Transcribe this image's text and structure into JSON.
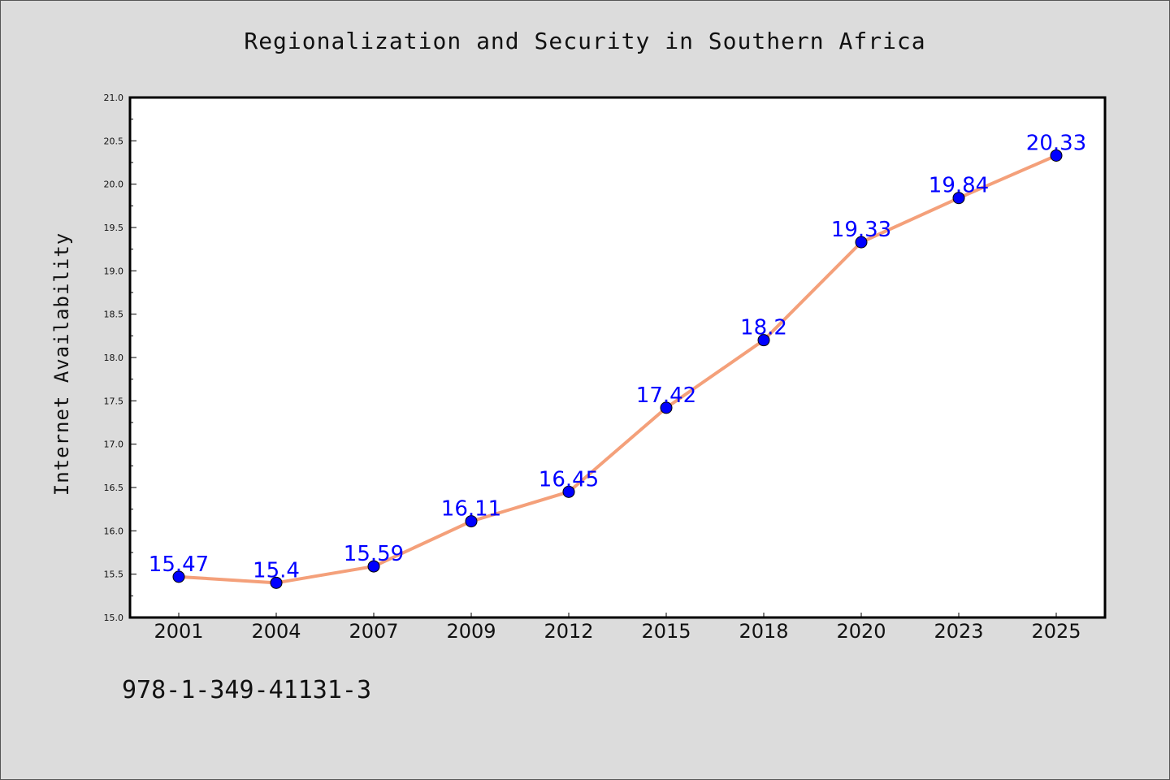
{
  "chart_data": {
    "type": "line",
    "title": "Regionalization and Security in Southern Africa",
    "xlabel": "",
    "ylabel": "Internet Availability",
    "categories": [
      "2001",
      "2004",
      "2007",
      "2009",
      "2012",
      "2015",
      "2018",
      "2020",
      "2023",
      "2025"
    ],
    "series": [
      {
        "values": [
          15.47,
          15.4,
          15.59,
          16.11,
          16.45,
          17.42,
          18.2,
          19.33,
          19.84,
          20.33
        ],
        "data_labels": [
          "15.47",
          "15.4",
          "15.59",
          "16.11",
          "16.45",
          "17.42",
          "18.2",
          "19.33",
          "19.84",
          "20.33"
        ]
      }
    ],
    "ylim": [
      15.0,
      21.0
    ],
    "yticks": [
      "15.0",
      "15.5",
      "16.0",
      "16.5",
      "17.0",
      "17.5",
      "18.0",
      "18.5",
      "19.0",
      "19.5",
      "20.0",
      "20.5",
      "21.0"
    ],
    "grid": false,
    "line_color": "#f4a07a",
    "marker_color": "#0000ff",
    "label_color": "#0000ff"
  },
  "footer": {
    "isbn": "978-1-349-41131-3"
  }
}
